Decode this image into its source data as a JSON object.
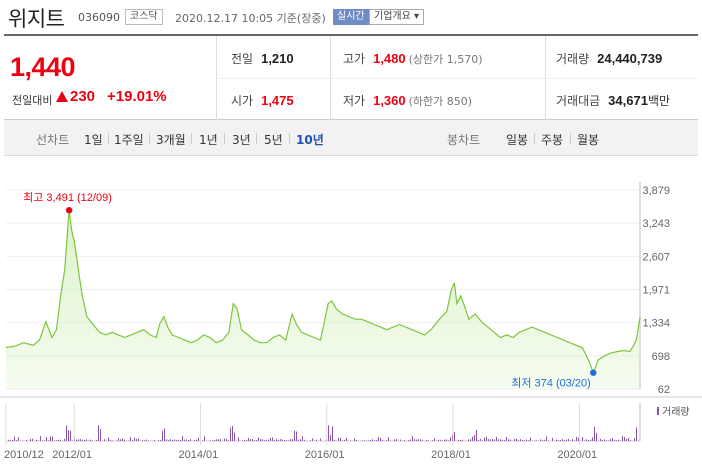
{
  "header": {
    "company_name": "위지트",
    "code": "036090",
    "market": "코스닥",
    "timestamp": "2020.12.17 10:05  기준(장중)",
    "realtime_badge": "실시간",
    "company_overview": "기업개요 ▾"
  },
  "price": {
    "current": "1,440",
    "change_label": "전일대비",
    "change_value": "230",
    "change_pct": "+19.01%"
  },
  "stats": {
    "prev_close_label": "전일",
    "prev_close": "1,210",
    "open_label": "시가",
    "open": "1,475",
    "high_label": "고가",
    "high": "1,480",
    "upper_limit": "(상한가 1,570)",
    "low_label": "저가",
    "low": "1,360",
    "lower_limit": "(하한가 850)",
    "volume_label": "거래량",
    "volume": "24,440,739",
    "value_label": "거래대금",
    "value": "34,671",
    "value_unit": "백만"
  },
  "periods": {
    "line_chart_label": "선차트",
    "items": [
      "1일",
      "1주일",
      "3개월",
      "1년",
      "3년",
      "5년",
      "10년"
    ],
    "active": "10년",
    "candle_chart_label": "봉차트",
    "candle_items": [
      "일봉",
      "주봉",
      "월봉"
    ]
  },
  "chart_data": {
    "type": "line",
    "title": "",
    "y_ticks": [
      "3,879",
      "3,243",
      "2,607",
      "1,971",
      "1,334",
      "698",
      "62"
    ],
    "ylim": [
      62,
      3879
    ],
    "x_ticks": [
      "2010/12",
      "2012/01",
      "2014/01",
      "2016/01",
      "2018/01",
      "2020/01"
    ],
    "x_tick_years": [
      2010.92,
      2012.0,
      2014.0,
      2016.0,
      2018.0,
      2020.0
    ],
    "xlim": [
      2010.92,
      2020.96
    ],
    "high_label": "최고 3,491 (12/09)",
    "low_label": "최저 374 (03/20)",
    "volume_legend": "거래량",
    "colors": {
      "line": "#7dc63b",
      "fill": "#d9f2c6",
      "high": "#e01",
      "low": "#1e6fd9",
      "volume": "#8855aa"
    },
    "series": [
      {
        "values": [
          [
            2010.92,
            860
          ],
          [
            2011.05,
            880
          ],
          [
            2011.2,
            950
          ],
          [
            2011.35,
            900
          ],
          [
            2011.45,
            1000
          ],
          [
            2011.55,
            1350
          ],
          [
            2011.65,
            1050
          ],
          [
            2011.72,
            1200
          ],
          [
            2011.78,
            1800
          ],
          [
            2011.85,
            2350
          ],
          [
            2011.92,
            3491
          ],
          [
            2011.96,
            3100
          ],
          [
            2012.0,
            2900
          ],
          [
            2012.06,
            2400
          ],
          [
            2012.12,
            1900
          ],
          [
            2012.2,
            1450
          ],
          [
            2012.3,
            1300
          ],
          [
            2012.4,
            1150
          ],
          [
            2012.5,
            1100
          ],
          [
            2012.6,
            1150
          ],
          [
            2012.7,
            1100
          ],
          [
            2012.8,
            1050
          ],
          [
            2012.9,
            1100
          ],
          [
            2013.0,
            1150
          ],
          [
            2013.1,
            1200
          ],
          [
            2013.2,
            1100
          ],
          [
            2013.3,
            1050
          ],
          [
            2013.35,
            1300
          ],
          [
            2013.42,
            1450
          ],
          [
            2013.48,
            1250
          ],
          [
            2013.55,
            1100
          ],
          [
            2013.65,
            1050
          ],
          [
            2013.75,
            1000
          ],
          [
            2013.85,
            950
          ],
          [
            2013.95,
            1000
          ],
          [
            2014.05,
            1100
          ],
          [
            2014.15,
            1050
          ],
          [
            2014.25,
            950
          ],
          [
            2014.35,
            1000
          ],
          [
            2014.45,
            1150
          ],
          [
            2014.52,
            1700
          ],
          [
            2014.58,
            1600
          ],
          [
            2014.65,
            1200
          ],
          [
            2014.75,
            1100
          ],
          [
            2014.85,
            1000
          ],
          [
            2014.95,
            950
          ],
          [
            2015.05,
            950
          ],
          [
            2015.15,
            1050
          ],
          [
            2015.25,
            1100
          ],
          [
            2015.35,
            1000
          ],
          [
            2015.45,
            1500
          ],
          [
            2015.52,
            1300
          ],
          [
            2015.6,
            1150
          ],
          [
            2015.7,
            1100
          ],
          [
            2015.8,
            1050
          ],
          [
            2015.9,
            1000
          ],
          [
            2015.97,
            1400
          ],
          [
            2016.02,
            1700
          ],
          [
            2016.08,
            1750
          ],
          [
            2016.15,
            1600
          ],
          [
            2016.25,
            1500
          ],
          [
            2016.35,
            1450
          ],
          [
            2016.45,
            1400
          ],
          [
            2016.55,
            1400
          ],
          [
            2016.65,
            1350
          ],
          [
            2016.75,
            1300
          ],
          [
            2016.85,
            1250
          ],
          [
            2016.95,
            1200
          ],
          [
            2017.05,
            1250
          ],
          [
            2017.15,
            1300
          ],
          [
            2017.25,
            1250
          ],
          [
            2017.35,
            1200
          ],
          [
            2017.45,
            1150
          ],
          [
            2017.55,
            1100
          ],
          [
            2017.65,
            1200
          ],
          [
            2017.75,
            1350
          ],
          [
            2017.82,
            1450
          ],
          [
            2017.9,
            1550
          ],
          [
            2017.97,
            1950
          ],
          [
            2018.02,
            2100
          ],
          [
            2018.06,
            1700
          ],
          [
            2018.12,
            1850
          ],
          [
            2018.18,
            1650
          ],
          [
            2018.25,
            1400
          ],
          [
            2018.35,
            1500
          ],
          [
            2018.45,
            1350
          ],
          [
            2018.55,
            1250
          ],
          [
            2018.65,
            1150
          ],
          [
            2018.75,
            1050
          ],
          [
            2018.85,
            1100
          ],
          [
            2018.95,
            1050
          ],
          [
            2019.05,
            1150
          ],
          [
            2019.15,
            1200
          ],
          [
            2019.25,
            1250
          ],
          [
            2019.35,
            1200
          ],
          [
            2019.45,
            1150
          ],
          [
            2019.55,
            1100
          ],
          [
            2019.65,
            1050
          ],
          [
            2019.75,
            1000
          ],
          [
            2019.85,
            950
          ],
          [
            2019.95,
            900
          ],
          [
            2020.05,
            850
          ],
          [
            2020.15,
            600
          ],
          [
            2020.22,
            374
          ],
          [
            2020.3,
            620
          ],
          [
            2020.4,
            700
          ],
          [
            2020.5,
            750
          ],
          [
            2020.6,
            780
          ],
          [
            2020.7,
            800
          ],
          [
            2020.8,
            780
          ],
          [
            2020.86,
            900
          ],
          [
            2020.9,
            1000
          ],
          [
            2020.93,
            1200
          ],
          [
            2020.96,
            1440
          ]
        ]
      }
    ],
    "volume_spikes_years": [
      2011.9,
      2012.4,
      2013.4,
      2014.5,
      2015.5,
      2016.05,
      2018.0,
      2018.35,
      2020.25,
      2020.92,
      2020.95
    ]
  }
}
